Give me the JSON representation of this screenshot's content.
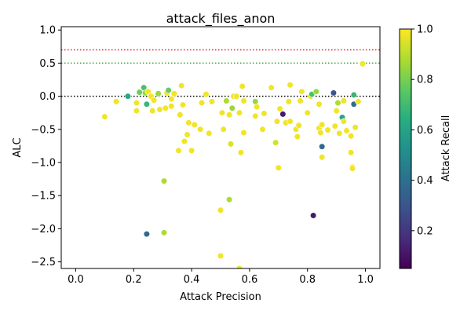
{
  "chart_data": {
    "type": "scatter",
    "title": "attack_files_anon",
    "xlabel": "Attack Precision",
    "ylabel": "ALC",
    "xlim": [
      -0.05,
      1.05
    ],
    "ylim": [
      -2.6,
      1.05
    ],
    "xticks": [
      "0.0",
      "0.2",
      "0.4",
      "0.6",
      "0.8",
      "1.0"
    ],
    "yticks": [
      "1.0",
      "0.5",
      "0.0",
      "−0.5",
      "−1.0",
      "−1.5",
      "−2.0",
      "−2.5"
    ],
    "grid": false,
    "reference_lines": [
      {
        "y": 0.7,
        "color": "#d62728",
        "style": "dotted"
      },
      {
        "y": 0.5,
        "color": "#2ca02c",
        "style": "dotted"
      },
      {
        "y": 0.0,
        "color": "#000000",
        "style": "dotted"
      }
    ],
    "colorbar": {
      "label": "Attack Recall",
      "range": [
        0.05,
        1.0
      ],
      "ticks": [
        "0.2",
        "0.4",
        "0.6",
        "0.8",
        "1.0"
      ],
      "colormap": "viridis"
    },
    "points": [
      {
        "x": 0.1,
        "y": -0.31,
        "c": 0.98
      },
      {
        "x": 0.14,
        "y": -0.08,
        "c": 0.98
      },
      {
        "x": 0.18,
        "y": 0.0,
        "c": 0.62
      },
      {
        "x": 0.21,
        "y": -0.1,
        "c": 0.98
      },
      {
        "x": 0.21,
        "y": -0.22,
        "c": 0.98
      },
      {
        "x": 0.22,
        "y": 0.06,
        "c": 0.78
      },
      {
        "x": 0.235,
        "y": 0.13,
        "c": 0.72
      },
      {
        "x": 0.24,
        "y": 0.05,
        "c": 0.85
      },
      {
        "x": 0.245,
        "y": -0.12,
        "c": 0.68
      },
      {
        "x": 0.25,
        "y": 0.07,
        "c": 0.98
      },
      {
        "x": 0.26,
        "y": 0.0,
        "c": 0.98
      },
      {
        "x": 0.265,
        "y": -0.22,
        "c": 0.98
      },
      {
        "x": 0.27,
        "y": -0.06,
        "c": 0.98
      },
      {
        "x": 0.285,
        "y": 0.04,
        "c": 0.85
      },
      {
        "x": 0.29,
        "y": -0.2,
        "c": 0.98
      },
      {
        "x": 0.31,
        "y": -0.18,
        "c": 0.98
      },
      {
        "x": 0.315,
        "y": 0.05,
        "c": 0.98
      },
      {
        "x": 0.32,
        "y": 0.09,
        "c": 0.78
      },
      {
        "x": 0.33,
        "y": -0.04,
        "c": 0.98
      },
      {
        "x": 0.33,
        "y": -0.15,
        "c": 0.98
      },
      {
        "x": 0.34,
        "y": 0.04,
        "c": 0.98
      },
      {
        "x": 0.355,
        "y": -0.82,
        "c": 0.98
      },
      {
        "x": 0.36,
        "y": -0.28,
        "c": 0.98
      },
      {
        "x": 0.365,
        "y": 0.16,
        "c": 0.98
      },
      {
        "x": 0.37,
        "y": -0.13,
        "c": 0.98
      },
      {
        "x": 0.375,
        "y": -0.68,
        "c": 0.98
      },
      {
        "x": 0.385,
        "y": -0.58,
        "c": 0.98
      },
      {
        "x": 0.39,
        "y": -0.4,
        "c": 0.98
      },
      {
        "x": 0.4,
        "y": -0.82,
        "c": 0.98
      },
      {
        "x": 0.41,
        "y": -0.43,
        "c": 0.98
      },
      {
        "x": 0.43,
        "y": -0.5,
        "c": 0.98
      },
      {
        "x": 0.435,
        "y": -0.1,
        "c": 0.98
      },
      {
        "x": 0.45,
        "y": 0.03,
        "c": 0.98
      },
      {
        "x": 0.46,
        "y": -0.56,
        "c": 0.98
      },
      {
        "x": 0.47,
        "y": -0.08,
        "c": 0.98
      },
      {
        "x": 0.505,
        "y": -0.25,
        "c": 0.98
      },
      {
        "x": 0.51,
        "y": -0.5,
        "c": 0.98
      },
      {
        "x": 0.52,
        "y": -0.07,
        "c": 0.88
      },
      {
        "x": 0.53,
        "y": -0.28,
        "c": 0.98
      },
      {
        "x": 0.535,
        "y": -0.72,
        "c": 0.95
      },
      {
        "x": 0.54,
        "y": -0.18,
        "c": 0.85
      },
      {
        "x": 0.545,
        "y": 0.0,
        "c": 0.98
      },
      {
        "x": 0.555,
        "y": 0.0,
        "c": 0.98
      },
      {
        "x": 0.565,
        "y": -0.25,
        "c": 0.98
      },
      {
        "x": 0.57,
        "y": -0.85,
        "c": 0.98
      },
      {
        "x": 0.575,
        "y": 0.15,
        "c": 0.98
      },
      {
        "x": 0.58,
        "y": -0.07,
        "c": 0.98
      },
      {
        "x": 0.58,
        "y": -0.55,
        "c": 0.98
      },
      {
        "x": 0.62,
        "y": -0.08,
        "c": 0.85
      },
      {
        "x": 0.62,
        "y": -0.3,
        "c": 0.98
      },
      {
        "x": 0.625,
        "y": -0.16,
        "c": 0.98
      },
      {
        "x": 0.645,
        "y": -0.5,
        "c": 0.98
      },
      {
        "x": 0.65,
        "y": -0.26,
        "c": 0.98
      },
      {
        "x": 0.675,
        "y": 0.13,
        "c": 0.98
      },
      {
        "x": 0.69,
        "y": -0.7,
        "c": 0.93
      },
      {
        "x": 0.695,
        "y": -0.38,
        "c": 0.98
      },
      {
        "x": 0.7,
        "y": -1.08,
        "c": 0.98
      },
      {
        "x": 0.705,
        "y": -0.19,
        "c": 0.98
      },
      {
        "x": 0.715,
        "y": -0.27,
        "c": 0.12
      },
      {
        "x": 0.725,
        "y": -0.4,
        "c": 0.98
      },
      {
        "x": 0.735,
        "y": -0.08,
        "c": 0.98
      },
      {
        "x": 0.74,
        "y": -0.38,
        "c": 0.98
      },
      {
        "x": 0.74,
        "y": 0.17,
        "c": 0.98
      },
      {
        "x": 0.76,
        "y": -0.5,
        "c": 0.98
      },
      {
        "x": 0.765,
        "y": -0.61,
        "c": 0.98
      },
      {
        "x": 0.77,
        "y": -0.44,
        "c": 0.98
      },
      {
        "x": 0.775,
        "y": -0.07,
        "c": 0.98
      },
      {
        "x": 0.78,
        "y": 0.07,
        "c": 0.98
      },
      {
        "x": 0.8,
        "y": -0.25,
        "c": 0.98
      },
      {
        "x": 0.81,
        "y": 0.0,
        "c": 0.98
      },
      {
        "x": 0.815,
        "y": 0.03,
        "c": 0.72
      },
      {
        "x": 0.82,
        "y": -1.8,
        "c": 0.12
      },
      {
        "x": 0.83,
        "y": 0.07,
        "c": 0.85
      },
      {
        "x": 0.84,
        "y": -0.48,
        "c": 0.98
      },
      {
        "x": 0.84,
        "y": -0.12,
        "c": 0.98
      },
      {
        "x": 0.845,
        "y": -0.55,
        "c": 0.98
      },
      {
        "x": 0.85,
        "y": -0.43,
        "c": 0.98
      },
      {
        "x": 0.85,
        "y": -0.76,
        "c": 0.38
      },
      {
        "x": 0.85,
        "y": -0.92,
        "c": 0.98
      },
      {
        "x": 0.87,
        "y": -0.51,
        "c": 0.98
      },
      {
        "x": 0.89,
        "y": 0.05,
        "c": 0.3
      },
      {
        "x": 0.895,
        "y": -0.45,
        "c": 0.98
      },
      {
        "x": 0.9,
        "y": -0.22,
        "c": 0.98
      },
      {
        "x": 0.905,
        "y": -0.1,
        "c": 0.88
      },
      {
        "x": 0.91,
        "y": -0.56,
        "c": 0.98
      },
      {
        "x": 0.92,
        "y": -0.32,
        "c": 0.6
      },
      {
        "x": 0.925,
        "y": -0.38,
        "c": 0.98
      },
      {
        "x": 0.925,
        "y": -0.07,
        "c": 0.98
      },
      {
        "x": 0.935,
        "y": -0.52,
        "c": 0.98
      },
      {
        "x": 0.95,
        "y": -0.6,
        "c": 0.98
      },
      {
        "x": 0.95,
        "y": -0.85,
        "c": 0.98
      },
      {
        "x": 0.955,
        "y": -1.07,
        "c": 0.98
      },
      {
        "x": 0.955,
        "y": -1.09,
        "c": 0.98
      },
      {
        "x": 0.96,
        "y": 0.02,
        "c": 0.68
      },
      {
        "x": 0.96,
        "y": -0.12,
        "c": 0.38
      },
      {
        "x": 0.965,
        "y": -0.47,
        "c": 0.98
      },
      {
        "x": 0.975,
        "y": -0.08,
        "c": 0.98
      },
      {
        "x": 0.99,
        "y": 0.49,
        "c": 0.98
      },
      {
        "x": 0.245,
        "y": -2.08,
        "c": 0.38
      },
      {
        "x": 0.305,
        "y": -1.28,
        "c": 0.88
      },
      {
        "x": 0.305,
        "y": -2.06,
        "c": 0.88
      },
      {
        "x": 0.5,
        "y": -1.72,
        "c": 0.98
      },
      {
        "x": 0.5,
        "y": -2.41,
        "c": 0.98
      },
      {
        "x": 0.53,
        "y": -1.56,
        "c": 0.88
      },
      {
        "x": 0.565,
        "y": -2.6,
        "c": 0.98
      }
    ]
  }
}
